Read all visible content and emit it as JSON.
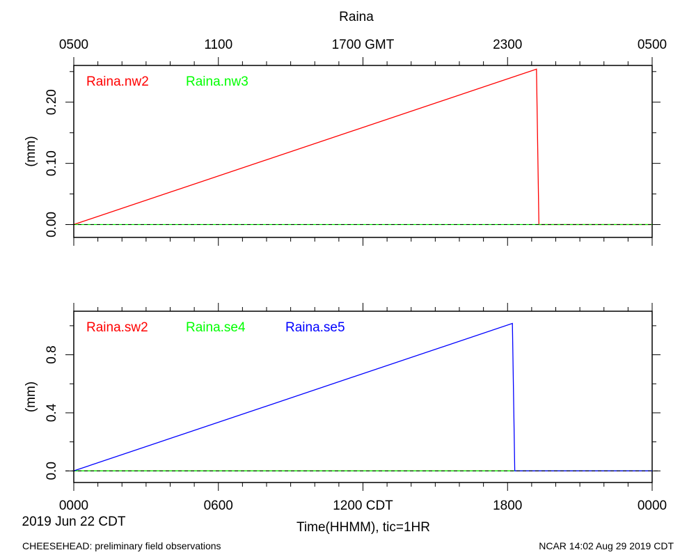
{
  "figure": {
    "title": "Raina",
    "date_label": "2019 Jun 22 CDT",
    "xlabel": "Time(HHMM), tic=1HR",
    "footer_left": "CHEESEHEAD: preliminary field observations",
    "footer_right": "NCAR 14:02 Aug 29 2019 CDT",
    "top_axis_ticks": [
      "0500",
      "1100",
      "1700 GMT",
      "2300",
      "0500"
    ],
    "bottom_axis_ticks": [
      "0000",
      "0600",
      "1200 CDT",
      "1800",
      "0000"
    ]
  },
  "chart_data": [
    {
      "type": "line",
      "ylabel": "(mm)",
      "xlim": [
        0,
        24
      ],
      "ylim": [
        -0.021,
        0.26
      ],
      "yticks": [
        0.0,
        0.1,
        0.2
      ],
      "ytick_labels": [
        "0.00",
        "0.10",
        "0.20"
      ],
      "zero_line": "dashed",
      "legend_placement": "top-left",
      "series": [
        {
          "name": "Raina.nw2",
          "color": "#ff0000",
          "x": [
            0,
            19.2,
            19.3,
            24
          ],
          "y": [
            0,
            0.254,
            0,
            0
          ]
        },
        {
          "name": "Raina.nw3",
          "color": "#00ff00",
          "x": [
            0,
            24
          ],
          "y": [
            0,
            0
          ]
        }
      ]
    },
    {
      "type": "line",
      "ylabel": "(mm)",
      "xlim": [
        0,
        24
      ],
      "ylim": [
        -0.08,
        1.1
      ],
      "yticks": [
        0.0,
        0.4,
        0.8
      ],
      "ytick_labels": [
        "0.0",
        "0.4",
        "0.8"
      ],
      "zero_line": "dashed",
      "legend_placement": "top-left",
      "series": [
        {
          "name": "Raina.sw2",
          "color": "#ff0000",
          "x": [
            0,
            24
          ],
          "y": [
            0,
            0
          ]
        },
        {
          "name": "Raina.se4",
          "color": "#00ff00",
          "x": [
            0,
            24
          ],
          "y": [
            0,
            0
          ]
        },
        {
          "name": "Raina.se5",
          "color": "#0000ff",
          "x": [
            0,
            18.2,
            18.3,
            24
          ],
          "y": [
            0,
            1.016,
            0,
            0
          ]
        }
      ]
    }
  ]
}
